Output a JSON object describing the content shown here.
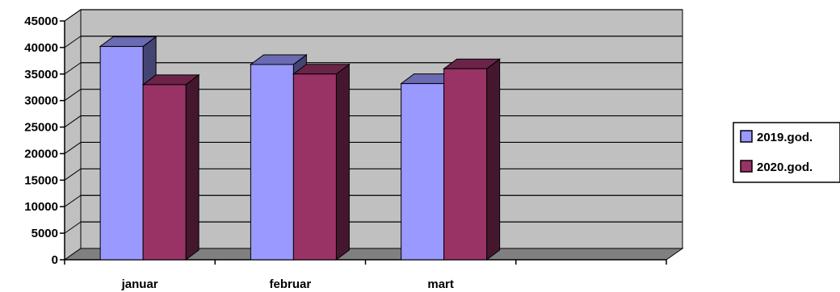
{
  "chart_data": {
    "type": "bar",
    "categories": [
      "januar",
      "februar",
      "mart",
      ""
    ],
    "series": [
      {
        "name": "2019.god.",
        "values": [
          40200,
          36800,
          33200,
          null
        ],
        "color": "#9999ff"
      },
      {
        "name": "2020.god.",
        "values": [
          33000,
          35000,
          36000,
          null
        ],
        "color": "#993366"
      }
    ],
    "yticks": [
      "0",
      "5000",
      "10000",
      "15000",
      "20000",
      "25000",
      "30000",
      "35000",
      "40000",
      "45000"
    ],
    "ylim": [
      0,
      45000
    ],
    "title": "",
    "xlabel": "",
    "ylabel": "",
    "grid": true,
    "legend": "right",
    "wall_color": "#c0c0c0",
    "floor_color": "#808080"
  }
}
